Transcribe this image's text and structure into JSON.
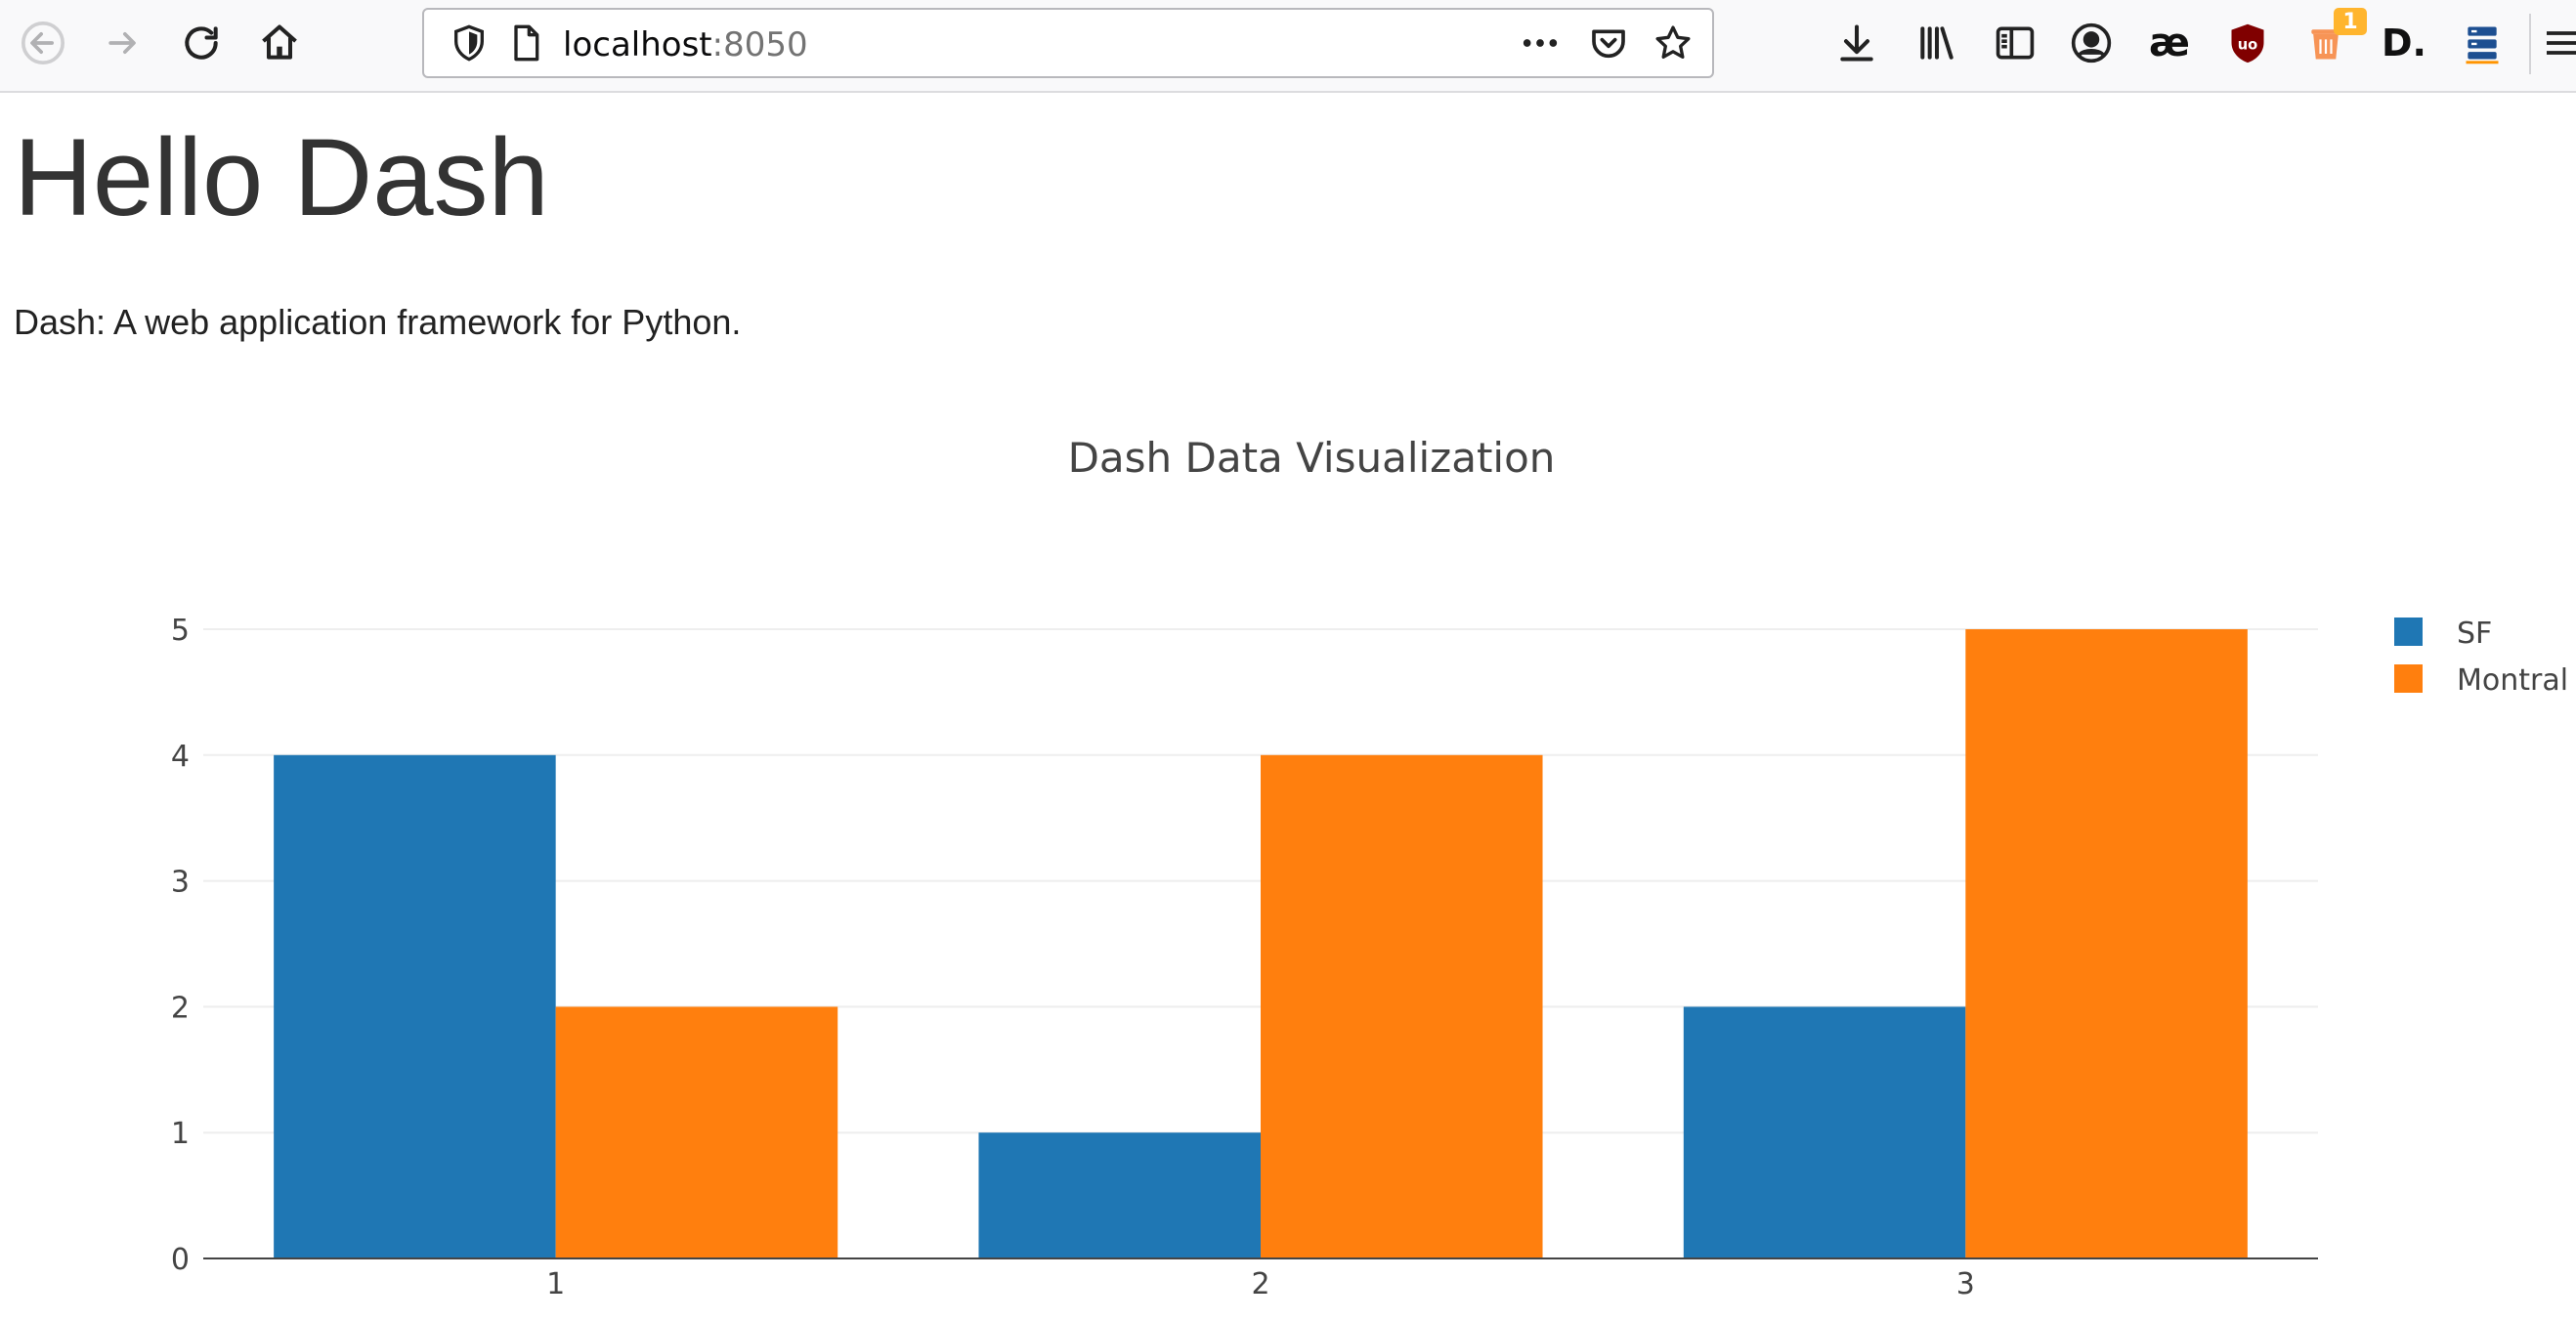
{
  "browser": {
    "url_host": "localhost",
    "url_port": ":8050",
    "notification_count": "1",
    "toolbar_icons": [
      "back-icon",
      "forward-icon",
      "reload-icon",
      "home-icon",
      "shield-icon",
      "page-icon",
      "more-icon",
      "pocket-icon",
      "star-icon",
      "download-icon",
      "library-icon",
      "sidebar-icon",
      "account-icon",
      "ae-extension-icon",
      "ublock-icon",
      "trash-extension-icon",
      "d-extension-icon",
      "stack-extension-icon",
      "menu-icon"
    ],
    "ae_label": "æ",
    "d_label": "D."
  },
  "page": {
    "title": "Hello Dash",
    "subtitle": "Dash: A web application framework for Python."
  },
  "colors": {
    "sf": "#1f77b4",
    "montral": "#ff7f0e",
    "grid": "#eeeeee",
    "axis": "#444444",
    "text": "#444444"
  },
  "chart_data": {
    "type": "bar",
    "title": "Dash Data Visualization",
    "categories": [
      "1",
      "2",
      "3"
    ],
    "series": [
      {
        "name": "SF",
        "values": [
          4,
          1,
          2
        ]
      },
      {
        "name": "Montral",
        "values": [
          2,
          4,
          5
        ]
      }
    ],
    "ylim": [
      0,
      5
    ],
    "yticks": [
      "0",
      "1",
      "2",
      "3",
      "4",
      "5"
    ],
    "xlabel": "",
    "ylabel": "",
    "grid": true,
    "legend": "top-right"
  }
}
